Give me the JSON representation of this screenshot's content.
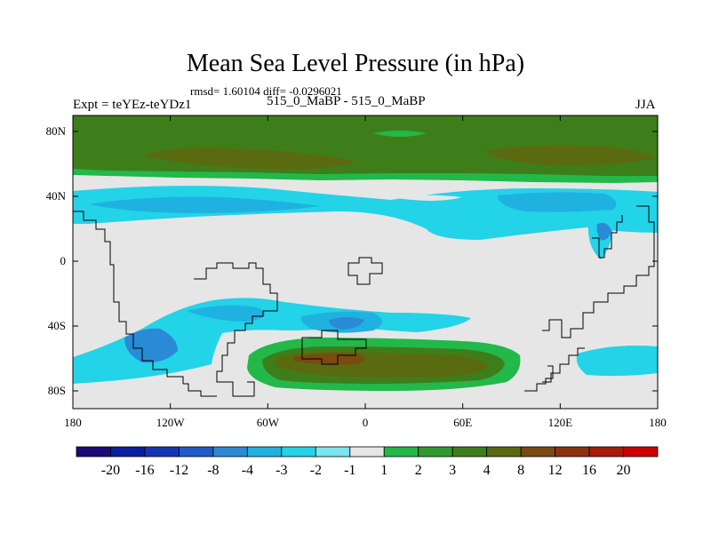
{
  "title": "Mean Sea Level Pressure (in hPa)",
  "stats": "rmsd= 1.60104 diff= -0.0296021",
  "left_label": "Expt = teYEz-teYDz1",
  "center_label": "515_0_MaBP - 515_0_MaBP",
  "right_label": "JJA",
  "x_ticks": [
    "180",
    "120W",
    "60W",
    "0",
    "60E",
    "120E",
    "180"
  ],
  "y_ticks": [
    "80N",
    "40N",
    "0",
    "40S",
    "80S"
  ],
  "colorbar": {
    "labels": [
      "-20",
      "-16",
      "-12",
      "-8",
      "-4",
      "-3",
      "-2",
      "-1",
      "1",
      "2",
      "3",
      "4",
      "8",
      "12",
      "16",
      "20"
    ],
    "colors": [
      "#1a0a7a",
      "#0a1f9e",
      "#1435b5",
      "#1f5cc8",
      "#2a8ad6",
      "#1fb2e0",
      "#23d3e8",
      "#7ae6ee",
      "#e6e6e6",
      "#22b84a",
      "#2f9a2f",
      "#3e7e1a",
      "#5a6a10",
      "#7a4a10",
      "#8e3010",
      "#a81a0a",
      "#cc0000"
    ]
  },
  "palette": {
    "background": "#e6e6e6",
    "light_blue": "#23d3e8",
    "mid_blue": "#1fb2e0",
    "blue": "#2a8ad6",
    "dark_blue": "#1f5cc8",
    "light_green": "#22b84a",
    "green": "#2f9a2f",
    "dark_green": "#3e7e1a",
    "olive": "#5a6a10",
    "brown": "#7a4a10"
  }
}
